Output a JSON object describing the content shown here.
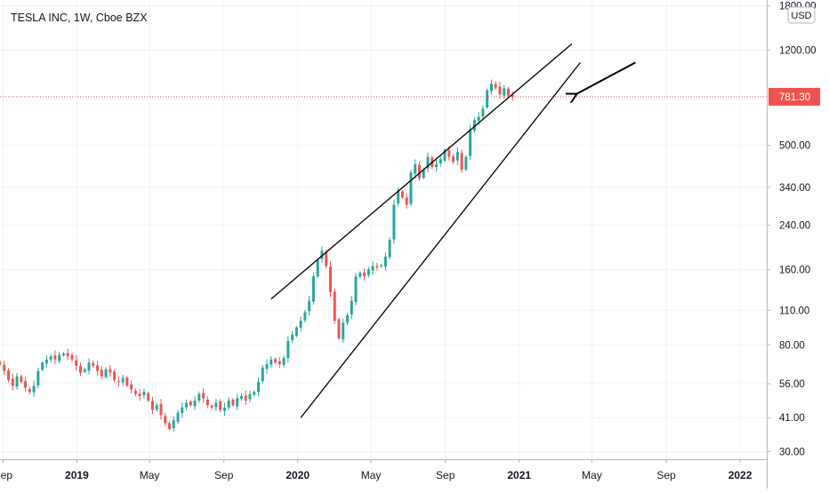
{
  "chart_data": {
    "type": "candlestick",
    "title": "TESLA INC, 1W, Cboe BZX",
    "currency": "USD",
    "y_scale": "log",
    "ylim": [
      28,
      1900
    ],
    "xlim": [
      "2018-08-27",
      "2022-02-14"
    ],
    "y_ticks": [
      "30.00",
      "41.00",
      "56.00",
      "80.00",
      "110.00",
      "160.00",
      "240.00",
      "340.00",
      "500.00",
      "1200.00",
      "1800.00"
    ],
    "x_ticks": [
      {
        "label": "Sep",
        "date": "2018-09-01",
        "bold": false
      },
      {
        "label": "2019",
        "date": "2019-01-01",
        "bold": true
      },
      {
        "label": "May",
        "date": "2019-05-01",
        "bold": false
      },
      {
        "label": "Sep",
        "date": "2019-09-01",
        "bold": false
      },
      {
        "label": "2020",
        "date": "2020-01-01",
        "bold": true
      },
      {
        "label": "May",
        "date": "2020-05-01",
        "bold": false
      },
      {
        "label": "Sep",
        "date": "2020-09-01",
        "bold": false
      },
      {
        "label": "2021",
        "date": "2021-01-01",
        "bold": true
      },
      {
        "label": "May",
        "date": "2021-05-01",
        "bold": false
      },
      {
        "label": "Sep",
        "date": "2021-09-01",
        "bold": false
      },
      {
        "label": "2022",
        "date": "2022-01-01",
        "bold": true
      }
    ],
    "last_price": {
      "value": 781.3,
      "label": "781.30"
    },
    "colors": {
      "up": "#26a69a",
      "down": "#ef5350",
      "trendline": "#000000",
      "price_line": "#ef5350",
      "axis_text": "#131722",
      "grid": "#f0f3fa"
    },
    "candles_start": "2018-08-27",
    "candles_interval_days": 7,
    "closes": [
      67,
      63,
      58,
      55,
      60,
      57,
      54,
      52,
      55,
      63,
      68,
      70,
      72,
      70,
      73,
      74,
      72,
      70,
      66,
      62,
      64,
      68,
      66,
      63,
      60,
      64,
      62,
      58,
      57,
      59,
      55,
      53,
      51,
      50,
      52,
      48,
      44,
      46,
      42,
      39,
      37,
      40,
      43,
      45,
      47,
      46,
      48,
      51,
      49,
      46,
      45,
      47,
      44,
      45,
      48,
      46,
      49,
      50,
      48,
      51,
      52,
      57,
      65,
      67,
      70,
      68,
      67,
      71,
      83,
      88,
      94,
      100,
      108,
      120,
      150,
      175,
      190,
      165,
      130,
      100,
      85,
      98,
      105,
      120,
      150,
      155,
      150,
      160,
      165,
      163,
      166,
      180,
      210,
      290,
      330,
      310,
      290,
      390,
      420,
      370,
      400,
      450,
      410,
      420,
      440,
      480,
      450,
      430,
      470,
      400,
      450,
      580,
      630,
      650,
      700,
      830,
      880,
      850,
      800,
      845,
      790,
      780
    ],
    "trendlines": [
      {
        "name": "upper channel line",
        "p1": {
          "date": "2019-11-18",
          "price": 122
        },
        "p2": {
          "date": "2021-03-29",
          "price": 1270
        }
      },
      {
        "name": "lower channel line",
        "p1": {
          "date": "2020-01-06",
          "price": 41
        },
        "p2": {
          "date": "2021-04-12",
          "price": 1070
        }
      },
      {
        "name": "annotation arrow",
        "p1": {
          "date": "2021-07-12",
          "price": 1070
        },
        "p2": {
          "date": "2021-04-05",
          "price": 800
        }
      }
    ]
  }
}
